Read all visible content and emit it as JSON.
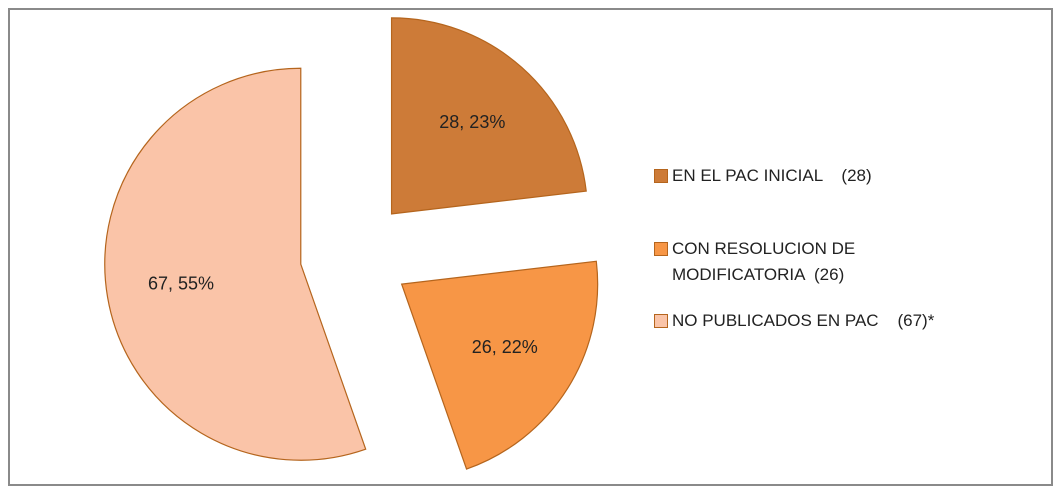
{
  "chart_data": {
    "type": "pie",
    "categories": [
      "EN EL PAC INICIAL    (28)",
      "CON RESOLUCION DE MODIFICATORIA  (26)",
      "NO PUBLICADOS EN PAC    (67)*"
    ],
    "values": [
      28,
      26,
      67
    ],
    "value_labels": [
      "28, 23%",
      "26, 22%",
      "67, 55%"
    ],
    "colors": [
      "#cd7b38",
      "#f79646",
      "#fac4a8"
    ],
    "legend": "right"
  }
}
